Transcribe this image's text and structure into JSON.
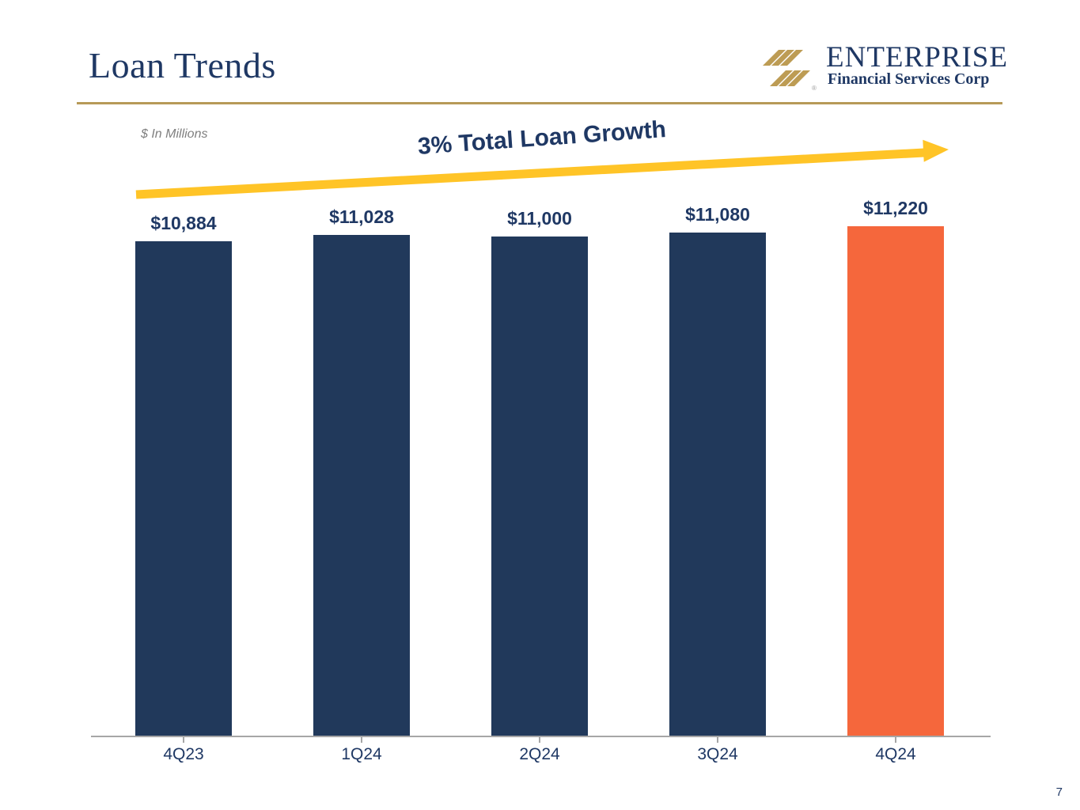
{
  "slide": {
    "title": "Loan Trends",
    "units_note": "$ In Millions",
    "growth_callout": "3% Total Loan Growth",
    "page_number": "7"
  },
  "logo": {
    "name": "ENTERPRISE",
    "tagline": "Financial Services Corp"
  },
  "colors": {
    "navy_text": "#1F3864",
    "bar_navy": "#21395B",
    "bar_highlight_orange": "#F5673C",
    "arrow_yellow": "#FFC427",
    "gold_rule": "#B79A58",
    "axis_gray": "#A6A6A6",
    "note_gray": "#7F7F7F"
  },
  "chart_data": {
    "type": "bar",
    "title": "3% Total Loan Growth",
    "units": "$ In Millions",
    "categories": [
      "4Q23",
      "1Q24",
      "2Q24",
      "3Q24",
      "4Q24"
    ],
    "values": [
      10884,
      11028,
      11000,
      11080,
      11220
    ],
    "value_labels": [
      "$10,884",
      "$11,028",
      "$11,000",
      "$11,080",
      "$11,220"
    ],
    "bar_colors": [
      "#21395B",
      "#21395B",
      "#21395B",
      "#21395B",
      "#F5673C"
    ],
    "ylim": [
      0,
      11220
    ],
    "grid": false,
    "legend": "none",
    "highlight_category": "4Q24"
  }
}
